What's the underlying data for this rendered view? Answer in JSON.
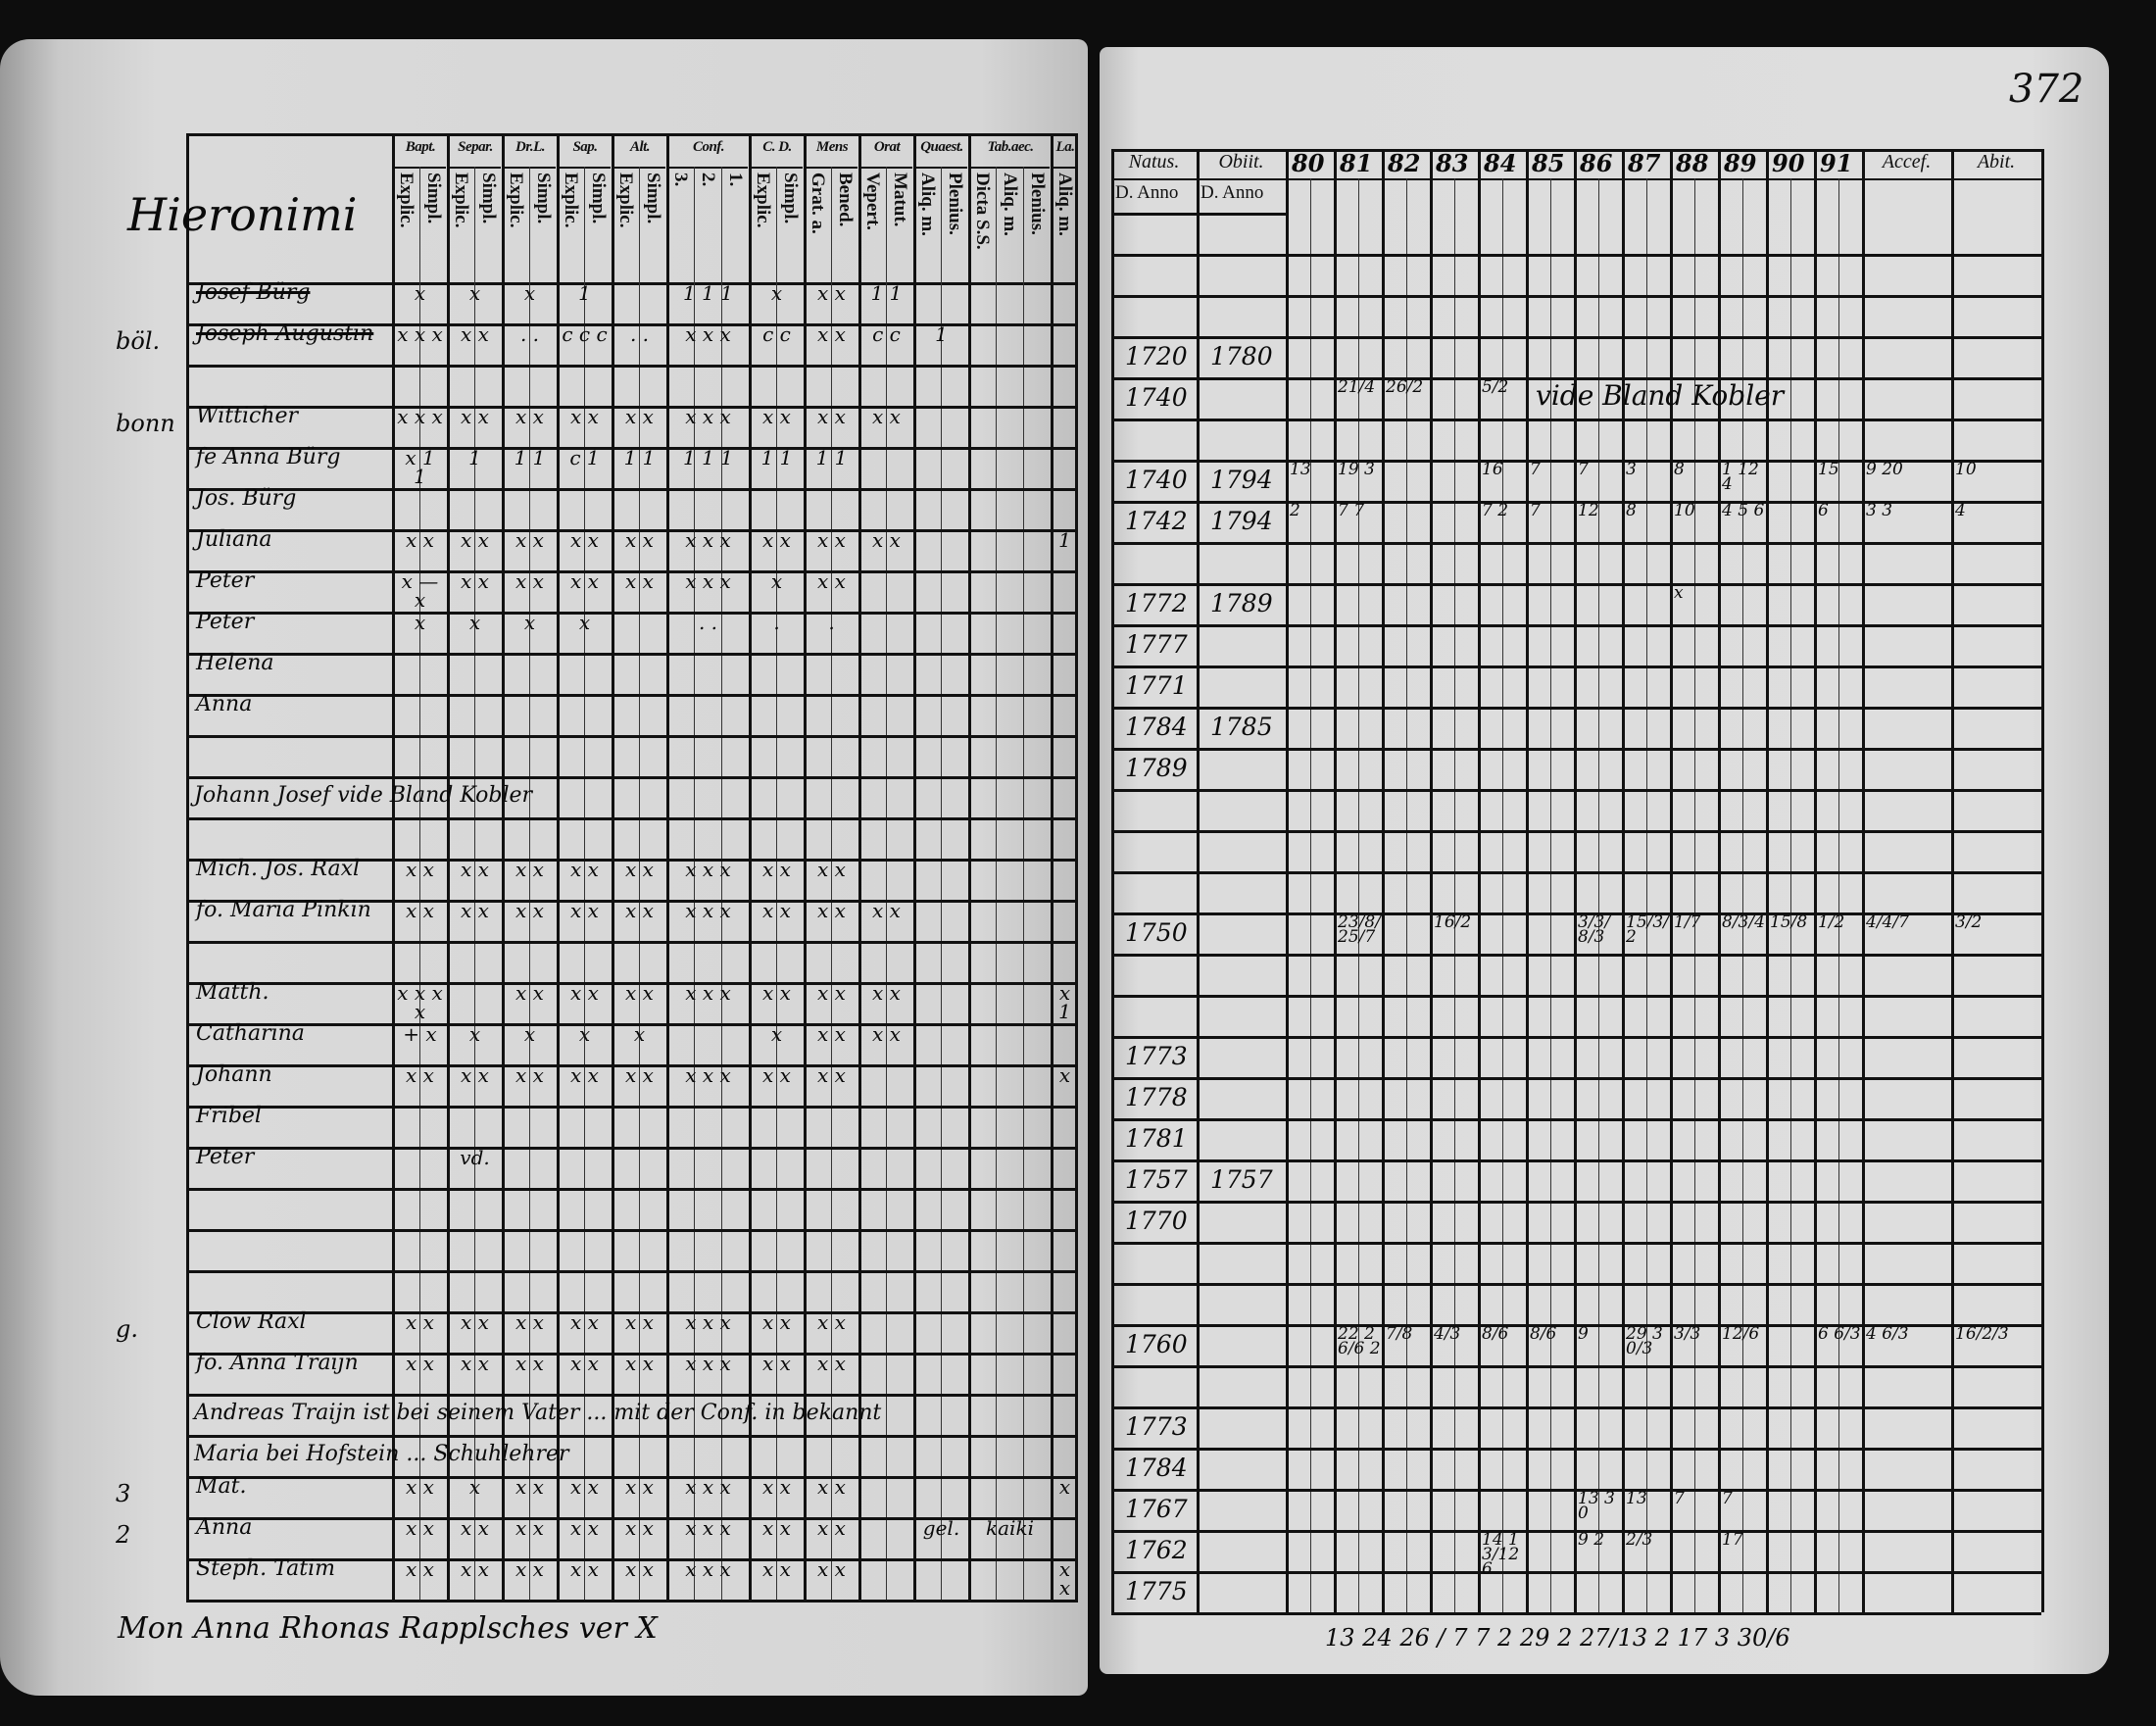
{
  "left_page": {
    "family_heading": "Hieronimi",
    "header_groups": [
      {
        "label": "Bapt.",
        "subs": [
          "Explic.",
          "Simpl."
        ]
      },
      {
        "label": "Separ.",
        "subs": [
          "Explic.",
          "Simpl."
        ]
      },
      {
        "label": "Dr.L.",
        "subs": [
          "Explic.",
          "Simpl."
        ]
      },
      {
        "label": "Sap.",
        "subs": [
          "Explic.",
          "Simpl."
        ]
      },
      {
        "label": "Alt.",
        "subs": [
          "Explic.",
          "Simpl."
        ]
      },
      {
        "label": "Conf.",
        "subs": [
          "3.",
          "2.",
          "1."
        ]
      },
      {
        "label": "C. D.",
        "subs": [
          "Explic.",
          "Simpl."
        ]
      },
      {
        "label": "Mens",
        "subs": [
          "Grat. a.",
          "Bened."
        ]
      },
      {
        "label": "Orat",
        "subs": [
          "Vepert.",
          "Matut."
        ]
      },
      {
        "label": "Quaest.",
        "subs": [
          "Aliq. m.",
          "Plenius."
        ]
      },
      {
        "label": "Tab.aec.",
        "subs": [
          "Dicta S.S.",
          "Aliq. m.",
          "Plenius."
        ]
      },
      {
        "label": "La.",
        "subs": [
          "Aliq. m."
        ]
      }
    ],
    "rows": [
      {
        "name": "Josef Bürg",
        "crossed": true,
        "marks": [
          "x",
          "x",
          "x",
          "1",
          "",
          "1 1 1",
          "x",
          "x x",
          "1 1",
          "",
          "",
          ""
        ]
      },
      {
        "name": "Joseph Augustin",
        "crossed": true,
        "margin": "böl.",
        "marks": [
          "x x x",
          "x x",
          ". .",
          "c c c",
          ". .",
          "x x x",
          "c c",
          "x x",
          "c c",
          "1",
          "",
          ""
        ]
      },
      {
        "name": ""
      },
      {
        "name": "Witticher",
        "margin": "bonn",
        "marks": [
          "x x x",
          "x x",
          "x x",
          "x x",
          "x x",
          "x x x",
          "x x",
          "x x",
          "x x",
          "",
          "",
          ""
        ]
      },
      {
        "name": "fe Anna Bürg",
        "marks": [
          "x 1 1",
          "1",
          "1 1",
          "c 1",
          "1 1",
          "1 1 1",
          "1 1",
          "1 1",
          "",
          "",
          "",
          ""
        ]
      },
      {
        "name": "Jos. Bürg",
        "marks": [
          "",
          "",
          "",
          "",
          "",
          "",
          "",
          "",
          "",
          "",
          "",
          ""
        ]
      },
      {
        "name": "Juliana",
        "marks": [
          "x x",
          "x x",
          "x x",
          "x x",
          "x x",
          "x x x",
          "x x",
          "x x",
          "x x",
          "",
          "",
          "1"
        ]
      },
      {
        "name": "Peter",
        "marks": [
          "x — x",
          "x x",
          "x x",
          "x x",
          "x x",
          "x x x",
          "x",
          "x x",
          "",
          "",
          "",
          ""
        ]
      },
      {
        "name": "Peter",
        "marks": [
          "x",
          "x",
          "x",
          "x",
          "",
          ". .",
          ".",
          ".",
          "",
          "",
          "",
          ""
        ]
      },
      {
        "name": "Helena"
      },
      {
        "name": "Anna"
      },
      {
        "name": ""
      },
      {
        "name": "Johann Josef   vide Bland Kobler",
        "span": true
      },
      {
        "name": ""
      },
      {
        "name": "Mich. Jos. Raxl",
        "marks": [
          "x x",
          "x x",
          "x x",
          "x x",
          "x x",
          "x x x",
          "x x",
          "x x",
          "",
          "",
          "",
          ""
        ]
      },
      {
        "name": "fo. Maria Pinkin",
        "marks": [
          "x x",
          "x x",
          "x x",
          "x x",
          "x x",
          "x x x",
          "x x",
          "x x",
          "x x",
          "",
          "",
          ""
        ]
      },
      {
        "name": ""
      },
      {
        "name": "Matth.",
        "marks": [
          "x x x x",
          "",
          "x x",
          "x x",
          "x x",
          "x x x",
          "x x",
          "x x",
          "x x",
          "",
          "",
          "x 1"
        ]
      },
      {
        "name": "Catharina",
        "marks": [
          "+ x",
          "x",
          "x",
          "x",
          "x",
          "",
          "x",
          "x x",
          "x x",
          "",
          "",
          ""
        ]
      },
      {
        "name": "Johann",
        "marks": [
          "x x",
          "x x",
          "x x",
          "x x",
          "x x",
          "x x x",
          "x x",
          "x x",
          "",
          "",
          "",
          "x"
        ]
      },
      {
        "name": "Fribel"
      },
      {
        "name": "Peter",
        "marks": [
          "",
          "vd.",
          "",
          "",
          "",
          "",
          "",
          "",
          "",
          "",
          "",
          ""
        ]
      },
      {
        "name": ""
      },
      {
        "name": ""
      },
      {
        "name": ""
      },
      {
        "name": "Clow Raxl",
        "margin": "g.",
        "marks": [
          "x x",
          "x x",
          "x x",
          "x x",
          "x x",
          "x x x",
          "x x",
          "x x",
          "",
          "",
          "",
          ""
        ]
      },
      {
        "name": "fo. Anna Traijn",
        "marks": [
          "x x",
          "x x",
          "x x",
          "x x",
          "x x",
          "x x x",
          "x x",
          "x x",
          "",
          "",
          "",
          ""
        ]
      },
      {
        "name": "Andreas Traijn   ist bei seinem Vater ... mit der Conf. in bekannt",
        "span": true
      },
      {
        "name": "Maria   bei Hofstein ... Schuhlehrer",
        "span": true
      },
      {
        "name": "Mat.",
        "margin": "3",
        "marks": [
          "x x",
          "x",
          "x x",
          "x x",
          "x x",
          "x x x",
          "x x",
          "x x",
          "",
          "",
          "",
          "x"
        ]
      },
      {
        "name": "Anna",
        "margin": "2",
        "marks": [
          "x x",
          "x x",
          "x x",
          "x x",
          "x x",
          "x x x",
          "x x",
          "x x",
          "",
          "gel.",
          "kaiki",
          ""
        ]
      },
      {
        "name": "Steph. Tatim",
        "marks": [
          "x x",
          "x x",
          "x x",
          "x x",
          "x x",
          "x x x",
          "x x",
          "x x",
          "",
          "",
          "",
          "x x"
        ]
      }
    ],
    "footer_note": "Mon Anna Rhonas   Rapplsches   ver X"
  },
  "right_page": {
    "page_number": "372",
    "header": {
      "natus": "Natus.",
      "natus_sub": "D. Anno",
      "obiit": "Obiit.",
      "obiit_sub": "D. Anno",
      "years": [
        "80",
        "81",
        "82",
        "83",
        "84",
        "85",
        "86",
        "87",
        "88",
        "89",
        "90",
        "91"
      ],
      "accessit": "Accef.",
      "abiit": "Abit."
    },
    "rows": [
      {},
      {},
      {},
      {
        "natus": "1720",
        "obiit": "1780"
      },
      {
        "natus": "1740",
        "entries": [
          "",
          "21/4",
          "26/2",
          "",
          "5/2",
          "",
          "",
          "",
          "",
          "",
          "",
          "",
          "",
          ""
        ],
        "note": "vide Bland Kobler"
      },
      {},
      {
        "natus": "1740",
        "obiit": "1794",
        "entries": [
          "13",
          "19 3",
          "",
          "",
          "16",
          "7",
          "7",
          "3",
          "8",
          "1 12 4",
          "",
          "15",
          "9 20",
          "10"
        ]
      },
      {
        "natus": "1742",
        "obiit": "1794",
        "entries": [
          "2",
          "7 7",
          "",
          "",
          "7 2",
          "7",
          "12",
          "8",
          "10",
          "4 5 6",
          "",
          "6",
          "3 3",
          "4"
        ]
      },
      {},
      {
        "natus": "1772",
        "obiit": "1789",
        "entries": [
          "",
          "",
          "",
          "",
          "",
          "",
          "",
          "",
          "x",
          "",
          "",
          "",
          "",
          ""
        ]
      },
      {
        "natus": "1777"
      },
      {
        "natus": "1771"
      },
      {
        "natus": "1784",
        "obiit": "1785"
      },
      {
        "natus": "1789"
      },
      {},
      {},
      {},
      {
        "natus": "1750",
        "entries": [
          "",
          "23/8/25/7",
          "",
          "16/2",
          "",
          "",
          "3/3/8/3",
          "15/3/2",
          "1/7",
          "8/3/4",
          "15/8",
          "1/2",
          "4/4/7",
          "3/2"
        ]
      },
      {},
      {},
      {
        "natus": "1773"
      },
      {
        "natus": "1778"
      },
      {
        "natus": "1781"
      },
      {
        "natus": "1757",
        "obiit": "1757"
      },
      {
        "natus": "1770"
      },
      {},
      {},
      {
        "natus": "1760",
        "entries": [
          "",
          "22 26/6 2",
          "7/8",
          "4/3",
          "8/6",
          "8/6",
          "9",
          "29 30/3",
          "3/3",
          "12/6",
          "",
          "6 6/3",
          "4 6/3",
          "16/2/3"
        ]
      },
      {},
      {
        "natus": "1773"
      },
      {
        "natus": "1784"
      },
      {
        "natus": "1767",
        "entries": [
          "",
          "",
          "",
          "",
          "",
          "",
          "13 30",
          "13",
          "7",
          "7",
          "",
          "",
          "",
          ""
        ]
      },
      {
        "natus": "1762",
        "entries": [
          "",
          "",
          "",
          "",
          "14 13/12 6",
          "",
          "9 2",
          "2/3",
          "",
          "17",
          "",
          "",
          "",
          ""
        ]
      },
      {
        "natus": "1775"
      }
    ],
    "footer_note": "13 24 26 / 7 7 2   29 2 27/13   2   17   3   30/6"
  }
}
